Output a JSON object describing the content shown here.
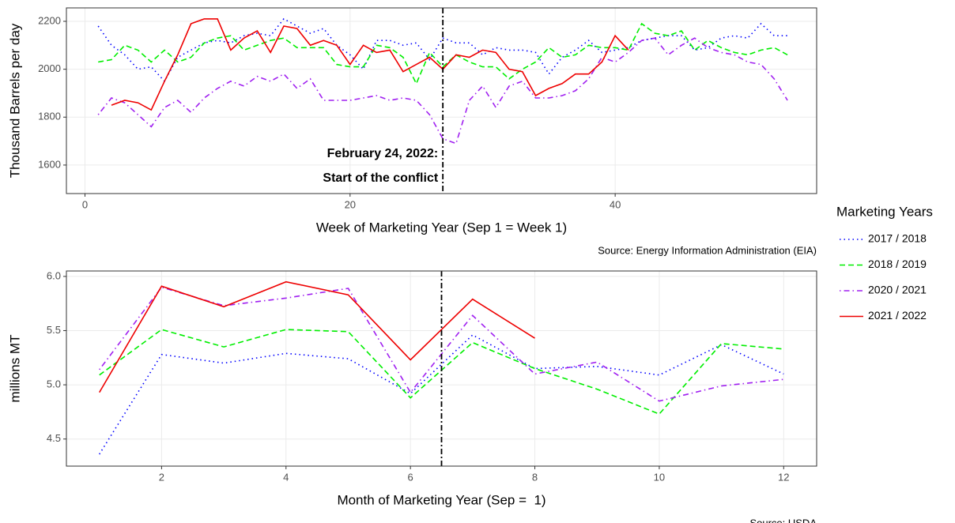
{
  "legend": {
    "title": "Marketing Years",
    "position": "right"
  },
  "chart_data": [
    {
      "type": "line",
      "y_label": "Thousand Barrels per day",
      "x_label": "Week of Marketing Year (Sep 1 = Week 1)",
      "source": "Source: Energy Information Administration (EIA)",
      "annotation": [
        "February 24, 2022:",
        "Start of the conflict"
      ],
      "vline": 27,
      "grid": true,
      "xlim": [
        -1.4,
        55.2
      ],
      "xticks": [
        0,
        20,
        40
      ],
      "ylim": [
        1481,
        2256
      ],
      "yticks": [
        1600,
        1800,
        2000,
        2200
      ],
      "x": [
        1,
        2,
        3,
        4,
        5,
        6,
        7,
        8,
        9,
        10,
        11,
        12,
        13,
        14,
        15,
        16,
        17,
        18,
        19,
        20,
        21,
        22,
        23,
        24,
        25,
        26,
        27,
        28,
        29,
        30,
        31,
        32,
        33,
        34,
        35,
        36,
        37,
        38,
        39,
        40,
        41,
        42,
        43,
        44,
        45,
        46,
        47,
        48,
        49,
        50,
        51,
        52,
        53
      ],
      "series": [
        {
          "name": "2017 / 2018",
          "color": "#0000ff",
          "dash": "dotted",
          "values": [
            2180,
            2100,
            2060,
            2000,
            2010,
            1950,
            2050,
            2080,
            2110,
            2120,
            2110,
            2140,
            2150,
            2140,
            2210,
            2180,
            2150,
            2170,
            2100,
            2060,
            2000,
            2120,
            2120,
            2100,
            2110,
            2040,
            2130,
            2110,
            2110,
            2060,
            2090,
            2080,
            2080,
            2070,
            1980,
            2050,
            2080,
            2120,
            2070,
            2080,
            2090,
            2120,
            2130,
            2140,
            2140,
            2080,
            2090,
            2130,
            2140,
            2130,
            2190,
            2140,
            2140
          ]
        },
        {
          "name": "2018 / 2019",
          "color": "#00ee00",
          "dash": "dashed",
          "values": [
            2030,
            2040,
            2100,
            2080,
            2030,
            2080,
            2030,
            2050,
            2110,
            2130,
            2140,
            2080,
            2100,
            2120,
            2130,
            2090,
            2090,
            2090,
            2020,
            2010,
            2010,
            2100,
            2090,
            2050,
            1940,
            2070,
            2010,
            2060,
            2030,
            2010,
            2010,
            1960,
            2000,
            2030,
            2090,
            2050,
            2060,
            2100,
            2090,
            2090,
            2080,
            2190,
            2150,
            2140,
            2160,
            2080,
            2120,
            2090,
            2070,
            2060,
            2080,
            2090,
            2060
          ]
        },
        {
          "name": "2020 / 2021",
          "color": "#a020f0",
          "dash": "dotdash",
          "values": [
            1810,
            1880,
            1860,
            1810,
            1760,
            1840,
            1870,
            1820,
            1880,
            1920,
            1950,
            1930,
            1970,
            1950,
            1980,
            1920,
            1960,
            1870,
            1870,
            1870,
            1880,
            1890,
            1870,
            1880,
            1870,
            1810,
            1710,
            1690,
            1870,
            1930,
            1840,
            1930,
            1950,
            1880,
            1880,
            1890,
            1910,
            1960,
            2050,
            2030,
            2070,
            2120,
            2130,
            2060,
            2100,
            2130,
            2090,
            2070,
            2060,
            2030,
            2020,
            1960,
            1870
          ]
        },
        {
          "name": "2021 / 2022",
          "color": "#ee0000",
          "dash": "solid",
          "values": [
            null,
            1850,
            1870,
            1860,
            1830,
            1950,
            2060,
            2190,
            2210,
            2210,
            2080,
            2130,
            2160,
            2070,
            2180,
            2170,
            2100,
            2120,
            2100,
            2020,
            2100,
            2070,
            2080,
            1990,
            2020,
            2050,
            2000,
            2060,
            2050,
            2080,
            2070,
            2000,
            1990,
            1890,
            1920,
            1940,
            1980,
            1980,
            2030,
            2140,
            2080,
            null,
            null,
            null,
            null,
            null,
            null,
            null,
            null,
            null,
            null,
            null,
            null
          ]
        }
      ]
    },
    {
      "type": "line",
      "y_label": "millions MT",
      "x_label": "Month of Marketing Year (Sep =  1)",
      "source": "Source: USDA",
      "vline": 6.5,
      "grid": true,
      "xlim": [
        0.47,
        12.53
      ],
      "xticks": [
        2,
        4,
        6,
        8,
        10,
        12
      ],
      "ylim": [
        4.25,
        6.05
      ],
      "yticks": [
        4.5,
        {
          "value": 5,
          "label": "5.0"
        },
        5.5,
        {
          "value": 6,
          "label": "6.0"
        }
      ],
      "x": [
        1,
        2,
        3,
        4,
        5,
        6,
        7,
        8,
        9,
        10,
        11,
        12
      ],
      "series": [
        {
          "name": "2017 / 2018",
          "color": "#0000ff",
          "dash": "dotted",
          "values": [
            4.36,
            5.28,
            5.2,
            5.29,
            5.24,
            4.92,
            5.46,
            5.15,
            5.17,
            5.09,
            5.37,
            5.1
          ]
        },
        {
          "name": "2018 / 2019",
          "color": "#00ee00",
          "dash": "dashed",
          "values": [
            5.09,
            5.51,
            5.35,
            5.51,
            5.49,
            4.88,
            5.39,
            5.15,
            4.96,
            4.73,
            5.38,
            5.33
          ]
        },
        {
          "name": "2020 / 2021",
          "color": "#a020f0",
          "dash": "dotdash",
          "values": [
            5.14,
            5.9,
            5.73,
            5.8,
            5.89,
            4.93,
            5.64,
            5.1,
            5.21,
            4.85,
            4.99,
            5.05
          ]
        },
        {
          "name": "2021 / 2022",
          "color": "#ee0000",
          "dash": "solid",
          "values": [
            4.93,
            5.91,
            5.72,
            5.95,
            5.83,
            5.23,
            5.79,
            5.43,
            null,
            null,
            null,
            null
          ]
        }
      ]
    }
  ]
}
